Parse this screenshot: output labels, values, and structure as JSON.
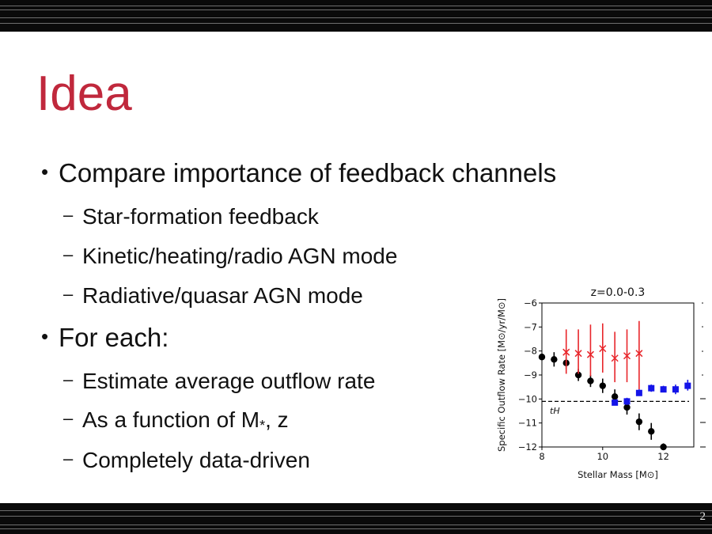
{
  "slide": {
    "title": "Idea",
    "page_number": "2",
    "bullets": [
      {
        "text": "Compare importance of feedback channels",
        "subitems": [
          "Star-formation feedback",
          "Kinetic/heating/radio AGN mode",
          "Radiative/quasar AGN mode"
        ]
      },
      {
        "text": "For each:",
        "subitems": [
          "Estimate average outflow rate",
          "As a function of M",
          "Completely data-driven"
        ]
      }
    ],
    "mstar_subscript": "*",
    "mstar_suffix": ", z"
  },
  "colors": {
    "title": "#c0283c",
    "black_series": "#000000",
    "red_series": "#e8262b",
    "blue_series": "#1414e8"
  },
  "chart_data": {
    "type": "scatter",
    "title": "z=0.0-0.3",
    "xlabel": "Stellar Mass [M⊙]",
    "ylabel": "Specific Outflow Rate [M⊙/yr/M⊙]",
    "xlim": [
      8,
      13
    ],
    "ylim": [
      -12,
      -6
    ],
    "xticks": [
      "8",
      "10",
      "12"
    ],
    "yticks": [
      "−6",
      "−7",
      "−8",
      "−9",
      "−10",
      "−11",
      "−12"
    ],
    "annotation": "tH",
    "hline_y": -10.1,
    "series": [
      {
        "marker": "circle",
        "color": "#000000",
        "points": [
          {
            "x": 8.0,
            "y": -8.25,
            "lo": -8.25,
            "hi": -8.25
          },
          {
            "x": 8.4,
            "y": -8.35,
            "lo": -8.65,
            "hi": -8.05
          },
          {
            "x": 8.8,
            "y": -8.5,
            "lo": -8.75,
            "hi": -8.25
          },
          {
            "x": 9.2,
            "y": -9.0,
            "lo": -9.25,
            "hi": -8.75
          },
          {
            "x": 9.6,
            "y": -9.25,
            "lo": -9.5,
            "hi": -9.0
          },
          {
            "x": 10.0,
            "y": -9.45,
            "lo": -9.75,
            "hi": -9.15
          },
          {
            "x": 10.4,
            "y": -9.9,
            "lo": -10.2,
            "hi": -9.6
          },
          {
            "x": 10.8,
            "y": -10.35,
            "lo": -10.65,
            "hi": -10.05
          },
          {
            "x": 11.2,
            "y": -10.95,
            "lo": -11.3,
            "hi": -10.6
          },
          {
            "x": 11.6,
            "y": -11.35,
            "lo": -11.7,
            "hi": -11.0
          },
          {
            "x": 12.0,
            "y": -12.0,
            "lo": -12.0,
            "hi": -11.85
          }
        ]
      },
      {
        "marker": "x",
        "color": "#e8262b",
        "points": [
          {
            "x": 8.8,
            "y": -8.05,
            "lo": -8.95,
            "hi": -7.1
          },
          {
            "x": 9.2,
            "y": -8.1,
            "lo": -8.95,
            "hi": -7.1
          },
          {
            "x": 9.6,
            "y": -8.15,
            "lo": -9.05,
            "hi": -6.9
          },
          {
            "x": 10.0,
            "y": -7.9,
            "lo": -8.9,
            "hi": -6.85
          },
          {
            "x": 10.4,
            "y": -8.3,
            "lo": -9.3,
            "hi": -7.2
          },
          {
            "x": 10.8,
            "y": -8.2,
            "lo": -9.3,
            "hi": -7.1
          },
          {
            "x": 11.2,
            "y": -8.1,
            "lo": -9.6,
            "hi": -6.75
          }
        ]
      },
      {
        "marker": "square",
        "color": "#1414e8",
        "points": [
          {
            "x": 10.4,
            "y": -10.15,
            "lo": -10.2,
            "hi": -10.1
          },
          {
            "x": 10.8,
            "y": -10.1,
            "lo": -10.25,
            "hi": -9.95
          },
          {
            "x": 11.2,
            "y": -9.75,
            "lo": -9.85,
            "hi": -9.6
          },
          {
            "x": 11.6,
            "y": -9.55,
            "lo": -9.7,
            "hi": -9.4
          },
          {
            "x": 12.0,
            "y": -9.6,
            "lo": -9.7,
            "hi": -9.45
          },
          {
            "x": 12.4,
            "y": -9.6,
            "lo": -9.8,
            "hi": -9.4
          },
          {
            "x": 12.8,
            "y": -9.45,
            "lo": -9.65,
            "hi": -9.2
          }
        ]
      }
    ]
  }
}
